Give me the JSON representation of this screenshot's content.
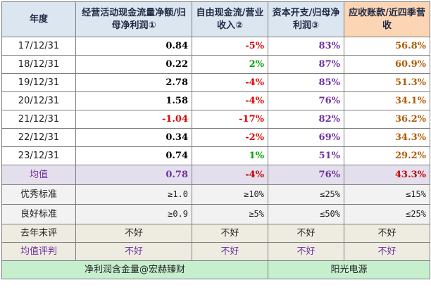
{
  "headers": {
    "c0": "年度",
    "c1": "经营活动现金流量净额/归母净利润①",
    "c2": "自由现金流/营业收入②",
    "c3": "资本开支/归母净利润③",
    "c4": "应收账款/近四季营收"
  },
  "rows": [
    {
      "date": "17/12/31",
      "v1": "0.84",
      "v2": "-5%",
      "v3": "83%",
      "v4": "56.8%"
    },
    {
      "date": "18/12/31",
      "v1": "0.22",
      "v2": "2%",
      "v3": "87%",
      "v4": "60.9%"
    },
    {
      "date": "19/12/31",
      "v1": "2.78",
      "v2": "-4%",
      "v3": "85%",
      "v4": "51.3%"
    },
    {
      "date": "20/12/31",
      "v1": "1.58",
      "v2": "-4%",
      "v3": "76%",
      "v4": "34.1%"
    },
    {
      "date": "21/12/31",
      "v1": "-1.04",
      "v2": "-17%",
      "v3": "82%",
      "v4": "36.2%"
    },
    {
      "date": "22/12/31",
      "v1": "0.34",
      "v2": "-2%",
      "v3": "69%",
      "v4": "34.3%"
    },
    {
      "date": "23/12/31",
      "v1": "0.74",
      "v2": "1%",
      "v3": "51%",
      "v4": "29.2%"
    }
  ],
  "average": {
    "label": "均值",
    "v1": "0.78",
    "v2": "-4%",
    "v3": "76%",
    "v4": "43.3%"
  },
  "excellent": {
    "label": "优秀标准",
    "v1": "≥1.0",
    "v2": "≥10%",
    "v3": "≤25%",
    "v4": "≤15%"
  },
  "good": {
    "label": "良好标准",
    "v1": "≥0.9",
    "v2": "≥5%",
    "v3": "≤50%",
    "v4": "≤25%"
  },
  "last_year_eval": {
    "label": "去年末评",
    "v1": "不好",
    "v2": "不好",
    "v3": "不好",
    "v4": "不好"
  },
  "avg_eval": {
    "label": "均值评判",
    "v1": "不好",
    "v2": "不好",
    "v3": "不好",
    "v4": "不好"
  },
  "footer": {
    "left": "净利润含金量@宏赫臻财",
    "right": "阳光电源"
  },
  "colors": {
    "header_bg": "#dce6f1",
    "header_accent_bg": "#fcd5b4",
    "avg_bg": "#e4dfec",
    "footer_bg": "#c6efce",
    "negative": "#e00000",
    "positive": "#00a000",
    "purple": "#7030a0",
    "brown": "#b05a00"
  }
}
